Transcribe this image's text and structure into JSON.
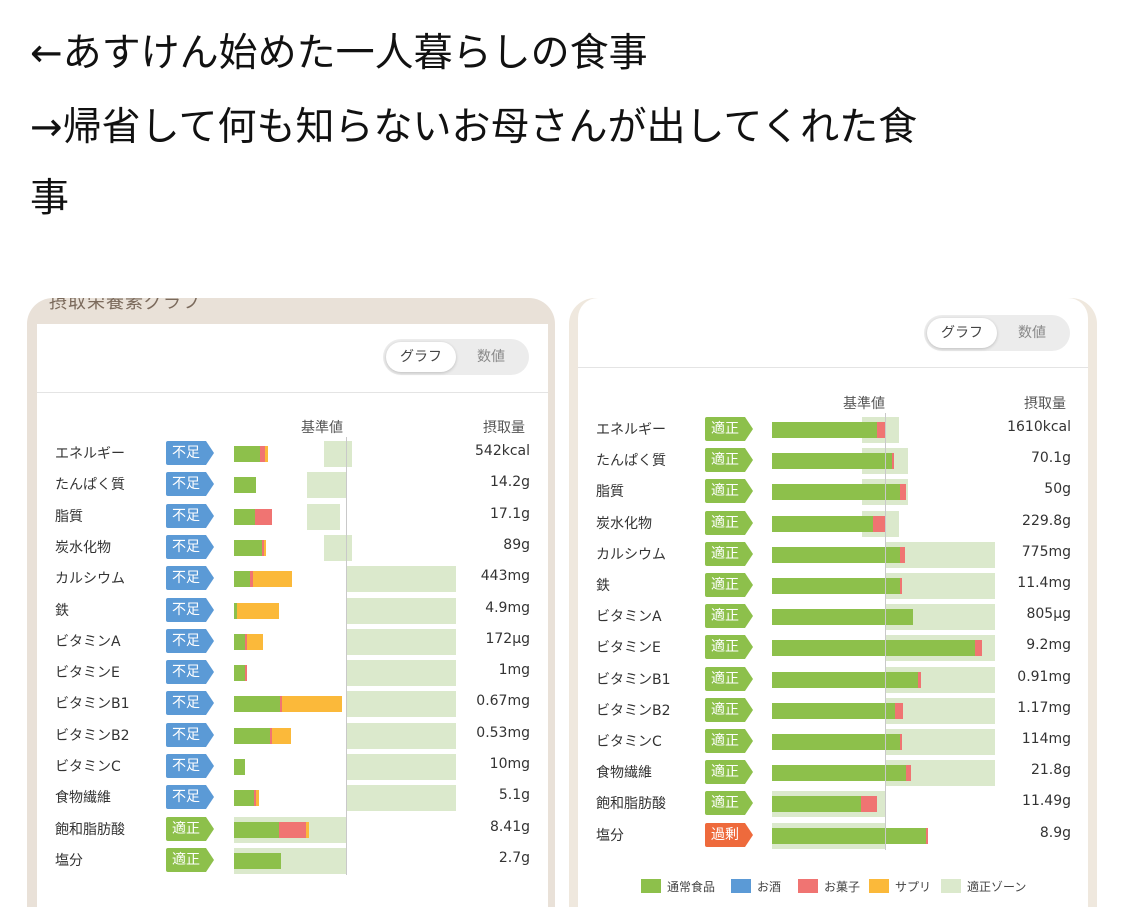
{
  "caption": {
    "line1": "←あすけん始めた一人暮らしの食事",
    "line2": "→帰省して何も知らないお母さんが出してくれた食",
    "line3": "事"
  },
  "colors": {
    "normal_food": "#8dc04b",
    "alcohol": "#5b9ad6",
    "snacks": "#f07472",
    "supplement": "#fbb93a",
    "proper_zone": "#dbe9cc",
    "badge_insufficient": "#5b9ad6",
    "badge_proper": "#8dc04b",
    "badge_excess": "#ee6a3c"
  },
  "left_panel": {
    "cut_title": "摂取栄養素グラフ",
    "toggle": {
      "graph": "グラフ",
      "numeric": "数値"
    },
    "header": {
      "baseline": "基準値",
      "intake": "摂取量"
    },
    "chart_data": {
      "type": "bar",
      "categories": [
        "エネルギー",
        "たんぱく質",
        "脂質",
        "炭水化物",
        "カルシウム",
        "鉄",
        "ビタミンA",
        "ビタミンE",
        "ビタミンB1",
        "ビタミンB2",
        "ビタミンC",
        "食物繊維",
        "飽和脂肪酸",
        "塩分"
      ],
      "status": [
        "不足",
        "不足",
        "不足",
        "不足",
        "不足",
        "不足",
        "不足",
        "不足",
        "不足",
        "不足",
        "不足",
        "不足",
        "適正",
        "適正"
      ],
      "intake_labels": [
        "542kcal",
        "14.2g",
        "17.1g",
        "89g",
        "443mg",
        "4.9mg",
        "172µg",
        "1mg",
        "0.67mg",
        "0.53mg",
        "10mg",
        "5.1g",
        "8.41g",
        "2.7g"
      ],
      "unit": "percent_of_baseline",
      "zones": [
        [
          80,
          105
        ],
        [
          65,
          100
        ],
        [
          65,
          95
        ],
        [
          80,
          105
        ],
        [
          100,
          400
        ],
        [
          100,
          400
        ],
        [
          100,
          400
        ],
        [
          100,
          400
        ],
        [
          100,
          400
        ],
        [
          100,
          400
        ],
        [
          100,
          400
        ],
        [
          100,
          400
        ],
        [
          0,
          100
        ],
        [
          0,
          100
        ]
      ],
      "series": [
        {
          "name": "通常食品",
          "values": [
            23,
            20,
            19,
            25,
            14,
            3,
            10,
            10,
            41,
            32,
            10,
            18,
            40,
            42
          ]
        },
        {
          "name": "お酒",
          "values": [
            0,
            0,
            0,
            0,
            0,
            0,
            0,
            0,
            0,
            0,
            0,
            0,
            0,
            0
          ]
        },
        {
          "name": "お菓子",
          "values": [
            5,
            0,
            15,
            2,
            3,
            0,
            2,
            2,
            2,
            2,
            0,
            2,
            24,
            0
          ]
        },
        {
          "name": "サプリ",
          "values": [
            2,
            0,
            0,
            2,
            35,
            37,
            14,
            0,
            53,
            17,
            0,
            2,
            3,
            0
          ]
        }
      ]
    }
  },
  "right_panel": {
    "toggle": {
      "graph": "グラフ",
      "numeric": "数値"
    },
    "header": {
      "baseline": "基準値",
      "intake": "摂取量"
    },
    "chart_data": {
      "type": "bar",
      "categories": [
        "エネルギー",
        "たんぱく質",
        "脂質",
        "炭水化物",
        "カルシウム",
        "鉄",
        "ビタミンA",
        "ビタミンE",
        "ビタミンB1",
        "ビタミンB2",
        "ビタミンC",
        "食物繊維",
        "飽和脂肪酸",
        "塩分"
      ],
      "status": [
        "適正",
        "適正",
        "適正",
        "適正",
        "適正",
        "適正",
        "適正",
        "適正",
        "適正",
        "適正",
        "適正",
        "適正",
        "適正",
        "過剰"
      ],
      "intake_labels": [
        "1610kcal",
        "70.1g",
        "50g",
        "229.8g",
        "775mg",
        "11.4mg",
        "805µg",
        "9.2mg",
        "0.91mg",
        "1.17mg",
        "114mg",
        "21.8g",
        "11.49g",
        "8.9g"
      ],
      "unit": "percent_of_baseline",
      "zones": [
        [
          80,
          112
        ],
        [
          80,
          120
        ],
        [
          80,
          120
        ],
        [
          80,
          112
        ],
        [
          100,
          200
        ],
        [
          100,
          200
        ],
        [
          100,
          200
        ],
        [
          100,
          200
        ],
        [
          100,
          200
        ],
        [
          100,
          200
        ],
        [
          100,
          200
        ],
        [
          100,
          200
        ],
        [
          0,
          100
        ],
        [
          0,
          100
        ]
      ],
      "series": [
        {
          "name": "通常食品",
          "values": [
            93,
            106,
            113,
            89,
            113,
            113,
            125,
            180,
            129,
            109,
            113,
            119,
            79,
            136
          ]
        },
        {
          "name": "お酒",
          "values": [
            0,
            0,
            0,
            0,
            0,
            0,
            0,
            0,
            0,
            0,
            0,
            0,
            0,
            0
          ]
        },
        {
          "name": "お菓子",
          "values": [
            8,
            2,
            6,
            12,
            5,
            2,
            0,
            6,
            3,
            7,
            2,
            4,
            14,
            2
          ]
        },
        {
          "name": "サプリ",
          "values": [
            0,
            0,
            0,
            0,
            0,
            0,
            0,
            0,
            0,
            0,
            0,
            0,
            0,
            0
          ]
        }
      ]
    },
    "legend": [
      "通常食品",
      "お酒",
      "お菓子",
      "サプリ",
      "適正ゾーン"
    ]
  }
}
